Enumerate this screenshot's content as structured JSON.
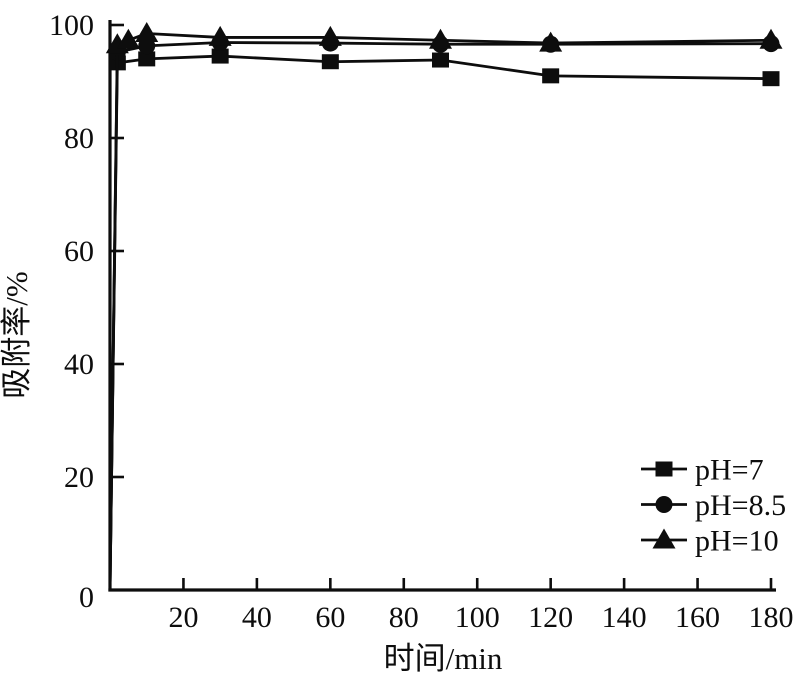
{
  "figure": {
    "background": "#ffffff",
    "ink_color": "#0d0d0d"
  },
  "chart_data": {
    "type": "line",
    "title": "",
    "xlabel": "时间/min",
    "ylabel": "吸附率/%",
    "xlim": [
      0,
      181
    ],
    "ylim": [
      0,
      100
    ],
    "x_ticks": [
      20,
      40,
      60,
      80,
      100,
      120,
      140,
      160,
      180
    ],
    "y_ticks": [
      0,
      20,
      40,
      60,
      80,
      100
    ],
    "grid": false,
    "legend_position": "lower right",
    "series": [
      {
        "name": "pH=7",
        "marker": "square",
        "color": "#0d0d0d",
        "x": [
          0,
          2,
          10,
          30,
          60,
          90,
          120,
          180
        ],
        "y": [
          0,
          93.3,
          94.0,
          94.5,
          93.5,
          93.8,
          91.0,
          90.5
        ]
      },
      {
        "name": "pH=8.5",
        "marker": "circle",
        "color": "#0d0d0d",
        "x": [
          0,
          2,
          10,
          30,
          60,
          90,
          120,
          180
        ],
        "y": [
          0,
          95.2,
          96.3,
          96.9,
          96.8,
          96.6,
          96.6,
          96.7
        ]
      },
      {
        "name": "pH=10",
        "marker": "triangle",
        "color": "#0d0d0d",
        "x": [
          0,
          2,
          5,
          10,
          30,
          60,
          90,
          120,
          180
        ],
        "y": [
          0,
          96.5,
          97.3,
          98.5,
          97.8,
          97.8,
          97.3,
          96.8,
          97.3
        ]
      }
    ]
  }
}
